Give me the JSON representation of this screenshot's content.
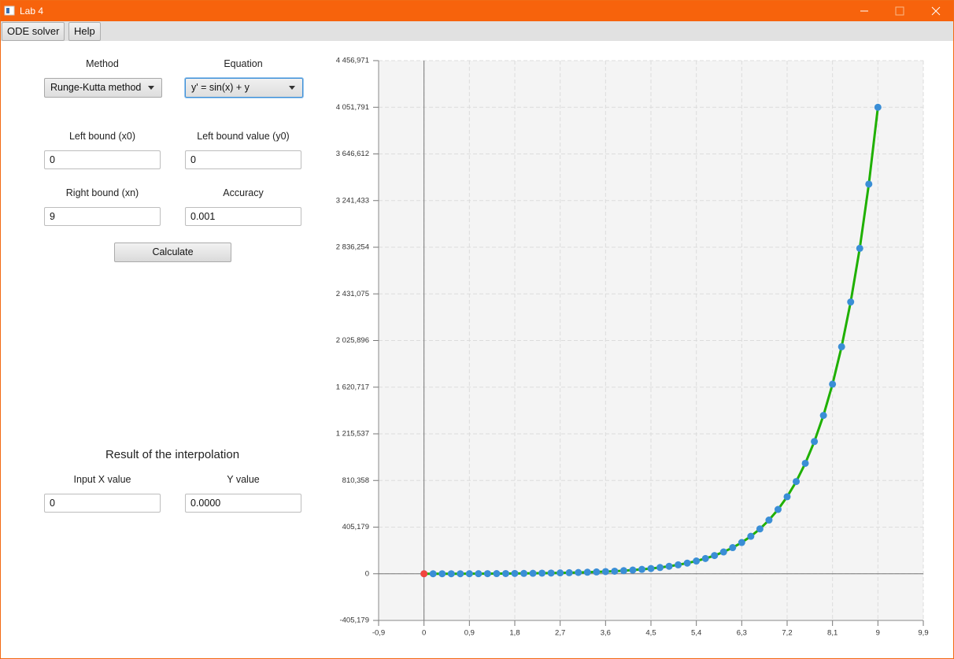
{
  "window": {
    "title": "Lab 4"
  },
  "menu": [
    "ODE solver",
    "Help"
  ],
  "form": {
    "method_label": "Method",
    "method_value": "Runge-Kutta method",
    "equation_label": "Equation",
    "equation_value": "y' = sin(x) + y",
    "x0_label": "Left bound (x0)",
    "x0_value": "0",
    "y0_label": "Left bound value (y0)",
    "y0_value": "0",
    "xn_label": "Right bound (xn)",
    "xn_value": "9",
    "accuracy_label": "Accuracy",
    "accuracy_value": "0.001",
    "button": "Calculate"
  },
  "interpolation": {
    "title": "Result of the interpolation",
    "x_label": "Input X value",
    "x_value": "0",
    "y_label": "Y value",
    "y_value": "0.0000"
  },
  "chart_data": {
    "type": "line",
    "grid": true,
    "xlim": [
      -0.9,
      9.9
    ],
    "xticks": [
      {
        "value": -0.9,
        "label": "-0,9"
      },
      0,
      {
        "value": 0.9,
        "label": "0,9"
      },
      {
        "value": 1.8,
        "label": "1,8"
      },
      {
        "value": 2.7,
        "label": "2,7"
      },
      {
        "value": 3.6,
        "label": "3,6"
      },
      {
        "value": 4.5,
        "label": "4,5"
      },
      {
        "value": 5.4,
        "label": "5,4"
      },
      {
        "value": 6.3,
        "label": "6,3"
      },
      {
        "value": 7.2,
        "label": "7,2"
      },
      {
        "value": 8.1,
        "label": "8,1"
      },
      9,
      {
        "value": 9.9,
        "label": "9,9"
      }
    ],
    "ylim": [
      -405.179,
      4456.971
    ],
    "yticks": [
      {
        "value": -405.179,
        "label": "-405,179"
      },
      0,
      {
        "value": 405.179,
        "label": "405,179"
      },
      {
        "value": 810.358,
        "label": "810,358"
      },
      {
        "value": 1215.537,
        "label": "1 215,537"
      },
      {
        "value": 1620.717,
        "label": "1 620,717"
      },
      {
        "value": 2025.896,
        "label": "2 025,896"
      },
      {
        "value": 2431.075,
        "label": "2 431,075"
      },
      {
        "value": 2836.254,
        "label": "2 836,254"
      },
      {
        "value": 3241.433,
        "label": "3 241,433"
      },
      {
        "value": 3646.612,
        "label": "3 646,612"
      },
      {
        "value": 4051.791,
        "label": "4 051,791"
      },
      {
        "value": 4456.971,
        "label": "4 456,971"
      }
    ],
    "series": [
      {
        "color": "#1fb000",
        "marker_color": "#3a8ed6",
        "x": [
          0,
          0.18,
          0.36,
          0.54,
          0.72,
          0.9,
          1.08,
          1.26,
          1.44,
          1.62,
          1.8,
          1.98,
          2.16,
          2.34,
          2.52,
          2.7,
          2.88,
          3.06,
          3.24,
          3.42,
          3.6,
          3.78,
          3.96,
          4.14,
          4.32,
          4.5,
          4.68,
          4.86,
          5.04,
          5.22,
          5.4,
          5.58,
          5.76,
          5.94,
          6.12,
          6.3,
          6.48,
          6.66,
          6.84,
          7.02,
          7.2,
          7.38,
          7.56,
          7.74,
          7.92,
          8.1,
          8.28,
          8.46,
          8.64,
          8.82,
          9
        ],
        "values": [
          0,
          0.017,
          0.073,
          0.172,
          0.322,
          0.527,
          0.796,
          1.134,
          1.549,
          2.052,
          2.652,
          3.362,
          4.198,
          5.179,
          6.33,
          7.678,
          9.261,
          11.121,
          13.314,
          15.903,
          18.969,
          22.608,
          26.935,
          32.093,
          38.249,
          45.603,
          54.4,
          64.932,
          77.544,
          92.658,
          110.772,
          132.476,
          158.491,
          189.666,
          227.02,
          271.778,
          325.398,
          389.627,
          466.556,
          558.687,
          669.014,
          801.122,
          959.3,
          1148.682,
          1375.42,
          1646.871,
          1971.848,
          2360.904,
          2826.666,
          3384.258,
          4051.791
        ]
      },
      {
        "marker_color": "#f2453d",
        "x": [
          0
        ],
        "values": [
          0
        ]
      }
    ]
  }
}
